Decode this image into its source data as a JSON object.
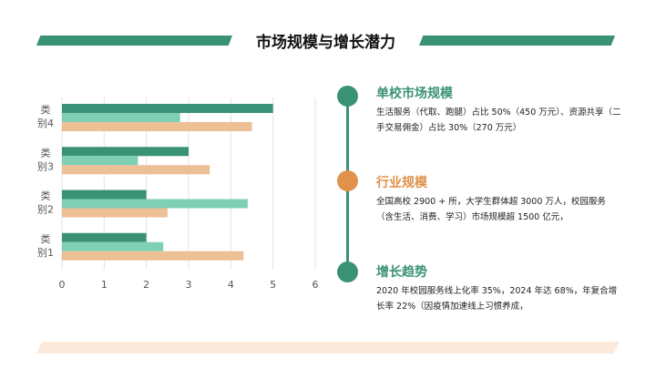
{
  "title": "市场规模与增长潜力",
  "colors": {
    "dark_green": "#3a9276",
    "light_green": "#7ecfb3",
    "peach": "#edbf95",
    "orange": "#e0914a"
  },
  "chart_data": {
    "type": "bar",
    "orientation": "horizontal",
    "categories": [
      "类别1",
      "类别2",
      "类别3",
      "类别4"
    ],
    "series": [
      {
        "values": [
          2,
          2,
          3,
          5
        ],
        "color": "#3a9276"
      },
      {
        "values": [
          2.4,
          4.4,
          1.8,
          2.8
        ],
        "color": "#7ecfb3"
      },
      {
        "values": [
          4.3,
          2.5,
          3.5,
          4.5
        ],
        "color": "#edbf95"
      }
    ],
    "xlim": [
      0,
      6
    ],
    "xticks": [
      "0",
      "1",
      "2",
      "3",
      "4",
      "5",
      "6"
    ],
    "grid": true,
    "legend": "none"
  },
  "sections": [
    {
      "title": "单校市场规模",
      "text": "生活服务（代取、跑腿）占比 50%（450 万元）、资源共享（二手交易佣金）占比 30%（270 万元）",
      "color": "#3a9276"
    },
    {
      "title": "行业规模",
      "text": "全国高校 2900 + 所，大学生群体超 3000 万人，校园服务（含生活、消费、学习）市场规模超 1500 亿元，",
      "color": "#e0914a"
    },
    {
      "title": "增长趋势",
      "text": "2020 年校园服务线上化率 35%，2024 年达 68%，年复合增长率 22%（因疫情加速线上习惯养成，",
      "color": "#3a9276"
    }
  ]
}
